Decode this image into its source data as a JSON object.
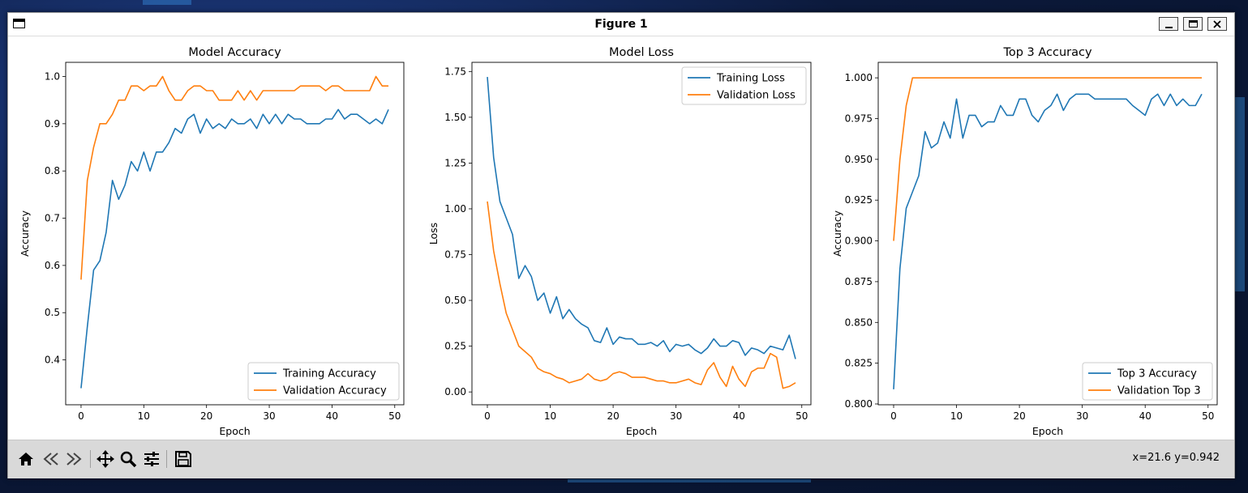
{
  "window": {
    "title": "Figure 1",
    "minimize_icon": "minimize-icon",
    "maximize_icon": "maximize-icon",
    "close_icon": "close-icon"
  },
  "toolbar": {
    "buttons": [
      "home-icon",
      "back-arrow-icon",
      "forward-arrow-icon",
      "pan-icon",
      "zoom-icon",
      "configure-subplots-icon",
      "save-icon"
    ],
    "coords": "x=21.6 y=0.942"
  },
  "colors": {
    "training": "#1f77b4",
    "validation": "#ff7f0e"
  },
  "chart_data": [
    {
      "type": "line",
      "title": "Model Accuracy",
      "xlabel": "Epoch",
      "ylabel": "Accuracy",
      "xlim": [
        -2.45,
        51.45
      ],
      "ylim": [
        0.305,
        1.03
      ],
      "xticks": [
        0,
        10,
        20,
        30,
        40,
        50
      ],
      "xtick_labels": [
        "0",
        "10",
        "20",
        "30",
        "40",
        "50"
      ],
      "yticks": [
        0.4,
        0.5,
        0.6,
        0.7,
        0.8,
        0.9,
        1.0
      ],
      "ytick_labels": [
        "0.4",
        "0.5",
        "0.6",
        "0.7",
        "0.8",
        "0.9",
        "1.0"
      ],
      "legend": "lower-right",
      "x": [
        0,
        1,
        2,
        3,
        4,
        5,
        6,
        7,
        8,
        9,
        10,
        11,
        12,
        13,
        14,
        15,
        16,
        17,
        18,
        19,
        20,
        21,
        22,
        23,
        24,
        25,
        26,
        27,
        28,
        29,
        30,
        31,
        32,
        33,
        34,
        35,
        36,
        37,
        38,
        39,
        40,
        41,
        42,
        43,
        44,
        45,
        46,
        47,
        48,
        49
      ],
      "series": [
        {
          "name": "Training Accuracy",
          "values": [
            0.34,
            0.47,
            0.59,
            0.61,
            0.67,
            0.78,
            0.74,
            0.77,
            0.82,
            0.8,
            0.84,
            0.8,
            0.84,
            0.84,
            0.86,
            0.89,
            0.88,
            0.91,
            0.92,
            0.88,
            0.91,
            0.89,
            0.9,
            0.89,
            0.91,
            0.9,
            0.9,
            0.91,
            0.89,
            0.92,
            0.9,
            0.92,
            0.9,
            0.92,
            0.91,
            0.91,
            0.9,
            0.9,
            0.9,
            0.91,
            0.91,
            0.93,
            0.91,
            0.92,
            0.92,
            0.91,
            0.9,
            0.91,
            0.9,
            0.93
          ]
        },
        {
          "name": "Validation Accuracy",
          "values": [
            0.57,
            0.78,
            0.85,
            0.9,
            0.9,
            0.92,
            0.95,
            0.95,
            0.98,
            0.98,
            0.97,
            0.98,
            0.98,
            1.0,
            0.97,
            0.95,
            0.95,
            0.97,
            0.98,
            0.98,
            0.97,
            0.97,
            0.95,
            0.95,
            0.95,
            0.97,
            0.95,
            0.97,
            0.95,
            0.97,
            0.97,
            0.97,
            0.97,
            0.97,
            0.97,
            0.98,
            0.98,
            0.98,
            0.98,
            0.97,
            0.98,
            0.98,
            0.97,
            0.97,
            0.97,
            0.97,
            0.97,
            1.0,
            0.98,
            0.98
          ]
        }
      ]
    },
    {
      "type": "line",
      "title": "Model Loss",
      "xlabel": "Epoch",
      "ylabel": "Loss",
      "xlim": [
        -2.45,
        51.45
      ],
      "ylim": [
        -0.07,
        1.8
      ],
      "xticks": [
        0,
        10,
        20,
        30,
        40,
        50
      ],
      "xtick_labels": [
        "0",
        "10",
        "20",
        "30",
        "40",
        "50"
      ],
      "yticks": [
        0.0,
        0.25,
        0.5,
        0.75,
        1.0,
        1.25,
        1.5,
        1.75
      ],
      "ytick_labels": [
        "0.00",
        "0.25",
        "0.50",
        "0.75",
        "1.00",
        "1.25",
        "1.50",
        "1.75"
      ],
      "legend": "top-right",
      "x": [
        0,
        1,
        2,
        3,
        4,
        5,
        6,
        7,
        8,
        9,
        10,
        11,
        12,
        13,
        14,
        15,
        16,
        17,
        18,
        19,
        20,
        21,
        22,
        23,
        24,
        25,
        26,
        27,
        28,
        29,
        30,
        31,
        32,
        33,
        34,
        35,
        36,
        37,
        38,
        39,
        40,
        41,
        42,
        43,
        44,
        45,
        46,
        47,
        48,
        49
      ],
      "series": [
        {
          "name": "Training Loss",
          "values": [
            1.72,
            1.28,
            1.04,
            0.95,
            0.86,
            0.62,
            0.69,
            0.63,
            0.5,
            0.54,
            0.43,
            0.52,
            0.4,
            0.45,
            0.4,
            0.37,
            0.35,
            0.28,
            0.27,
            0.35,
            0.26,
            0.3,
            0.29,
            0.29,
            0.26,
            0.26,
            0.27,
            0.25,
            0.28,
            0.22,
            0.26,
            0.25,
            0.26,
            0.23,
            0.21,
            0.24,
            0.29,
            0.25,
            0.25,
            0.28,
            0.27,
            0.2,
            0.24,
            0.23,
            0.21,
            0.25,
            0.24,
            0.23,
            0.31,
            0.18
          ]
        },
        {
          "name": "Validation Loss",
          "values": [
            1.04,
            0.77,
            0.59,
            0.43,
            0.34,
            0.25,
            0.22,
            0.19,
            0.13,
            0.11,
            0.1,
            0.08,
            0.07,
            0.05,
            0.06,
            0.07,
            0.1,
            0.07,
            0.06,
            0.07,
            0.1,
            0.11,
            0.1,
            0.08,
            0.08,
            0.08,
            0.07,
            0.06,
            0.06,
            0.05,
            0.05,
            0.06,
            0.07,
            0.05,
            0.04,
            0.12,
            0.16,
            0.08,
            0.03,
            0.14,
            0.07,
            0.03,
            0.11,
            0.13,
            0.13,
            0.21,
            0.19,
            0.02,
            0.03,
            0.05
          ]
        }
      ]
    },
    {
      "type": "line",
      "title": "Top 3 Accuracy",
      "xlabel": "Epoch",
      "ylabel": "Accuracy",
      "xlim": [
        -2.45,
        51.45
      ],
      "ylim": [
        0.7995,
        1.0095
      ],
      "xticks": [
        0,
        10,
        20,
        30,
        40,
        50
      ],
      "xtick_labels": [
        "0",
        "10",
        "20",
        "30",
        "40",
        "50"
      ],
      "yticks": [
        0.8,
        0.825,
        0.85,
        0.875,
        0.9,
        0.925,
        0.95,
        0.975,
        1.0
      ],
      "ytick_labels": [
        "0.800",
        "0.825",
        "0.850",
        "0.875",
        "0.900",
        "0.925",
        "0.950",
        "0.975",
        "1.000"
      ],
      "legend": "lower-right",
      "x": [
        0,
        1,
        2,
        3,
        4,
        5,
        6,
        7,
        8,
        9,
        10,
        11,
        12,
        13,
        14,
        15,
        16,
        17,
        18,
        19,
        20,
        21,
        22,
        23,
        24,
        25,
        26,
        27,
        28,
        29,
        30,
        31,
        32,
        33,
        34,
        35,
        36,
        37,
        38,
        39,
        40,
        41,
        42,
        43,
        44,
        45,
        46,
        47,
        48,
        49
      ],
      "series": [
        {
          "name": "Top 3 Accuracy",
          "values": [
            0.809,
            0.883,
            0.92,
            0.93,
            0.94,
            0.967,
            0.957,
            0.96,
            0.973,
            0.963,
            0.987,
            0.963,
            0.977,
            0.977,
            0.97,
            0.973,
            0.973,
            0.983,
            0.977,
            0.977,
            0.987,
            0.987,
            0.977,
            0.973,
            0.98,
            0.983,
            0.99,
            0.98,
            0.987,
            0.99,
            0.99,
            0.99,
            0.987,
            0.987,
            0.987,
            0.987,
            0.987,
            0.987,
            0.983,
            0.98,
            0.977,
            0.987,
            0.99,
            0.983,
            0.99,
            0.983,
            0.987,
            0.983,
            0.983,
            0.99
          ]
        },
        {
          "name": "Validation Top 3",
          "values": [
            0.9,
            0.95,
            0.983,
            1.0,
            1.0,
            1.0,
            1.0,
            1.0,
            1.0,
            1.0,
            1.0,
            1.0,
            1.0,
            1.0,
            1.0,
            1.0,
            1.0,
            1.0,
            1.0,
            1.0,
            1.0,
            1.0,
            1.0,
            1.0,
            1.0,
            1.0,
            1.0,
            1.0,
            1.0,
            1.0,
            1.0,
            1.0,
            1.0,
            1.0,
            1.0,
            1.0,
            1.0,
            1.0,
            1.0,
            1.0,
            1.0,
            1.0,
            1.0,
            1.0,
            1.0,
            1.0,
            1.0,
            1.0,
            1.0,
            1.0
          ]
        }
      ]
    }
  ]
}
